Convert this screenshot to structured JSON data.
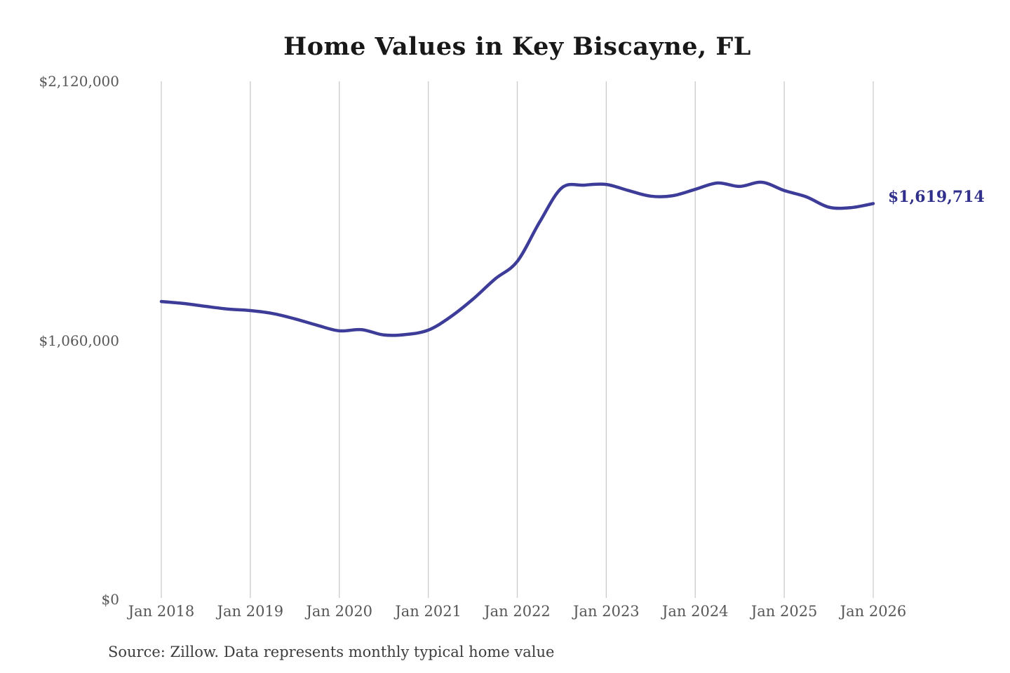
{
  "page": {
    "background": "#ffffff"
  },
  "chart_data": {
    "type": "line",
    "title": "Home Values in Key Biscayne, FL",
    "xlabel": "",
    "ylabel": "",
    "ylim": [
      0,
      2120000
    ],
    "grid": "vertical-only",
    "legend": "none",
    "line_color": "#3d3d99",
    "gridline_color": "#cbcbcb",
    "series": [
      {
        "name": "Monthly typical home value",
        "x": [
          "2018-01",
          "2018-04",
          "2018-07",
          "2018-10",
          "2019-01",
          "2019-04",
          "2019-07",
          "2019-10",
          "2020-01",
          "2020-04",
          "2020-07",
          "2020-10",
          "2021-01",
          "2021-04",
          "2021-07",
          "2021-10",
          "2022-01",
          "2022-04",
          "2022-07",
          "2022-10",
          "2023-01",
          "2023-04",
          "2023-07",
          "2023-10",
          "2024-01",
          "2024-04",
          "2024-07",
          "2024-10",
          "2025-01",
          "2025-04",
          "2025-07",
          "2025-10",
          "2026-01"
        ],
        "values": [
          1219000,
          1211000,
          1199000,
          1188000,
          1182000,
          1170000,
          1148000,
          1122000,
          1099000,
          1104000,
          1082000,
          1084000,
          1102000,
          1156000,
          1228000,
          1311000,
          1383000,
          1543000,
          1684000,
          1695000,
          1698000,
          1673000,
          1650000,
          1652000,
          1678000,
          1704000,
          1690000,
          1707000,
          1673000,
          1647000,
          1605000,
          1603000,
          1619714
        ]
      }
    ],
    "x_ticks": [
      "Jan 2018",
      "Jan 2019",
      "Jan 2020",
      "Jan 2021",
      "Jan 2022",
      "Jan 2023",
      "Jan 2024",
      "Jan 2025",
      "Jan 2026"
    ],
    "y_ticks": [
      {
        "value": 2120000,
        "label": "$2,120,000"
      },
      {
        "value": 1060000,
        "label": "$1,060,000"
      },
      {
        "value": 0,
        "label": "$0"
      }
    ],
    "end_label": {
      "text": "$1,619,714",
      "color": "#30308c"
    },
    "source_note": "Source: Zillow. Data represents monthly typical home value"
  }
}
